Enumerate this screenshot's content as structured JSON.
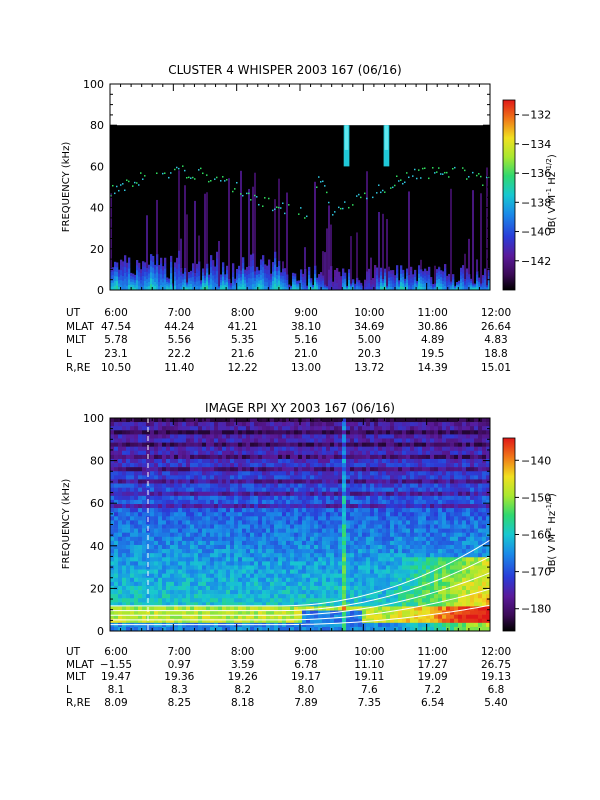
{
  "chart_data": [
    {
      "type": "heatmap",
      "title": "CLUSTER 4 WHISPER 2003 167 (06/16)",
      "xlabel": "",
      "ylabel": "FREQUENCY (kHz)",
      "colorbar_label": "dB( V M⁻¹ Hz⁻¹ᐟ²)",
      "colorbar_label_parts": {
        "pre": "dB( V M",
        "sup1": "-1",
        "mid": " Hz",
        "sup2": "-1/2",
        "post": ")"
      },
      "x_ticks": [
        "6:00",
        "7:00",
        "8:00",
        "9:00",
        "10:00",
        "11:00",
        "12:00"
      ],
      "y_ticks": [
        0,
        20,
        40,
        60,
        80,
        100
      ],
      "ylim": [
        0,
        100
      ],
      "data_ylim": [
        0,
        80
      ],
      "colorbar_ticks": [
        -132,
        -134,
        -136,
        -138,
        -140,
        -142
      ],
      "colorbar_range": [
        -144,
        -131
      ],
      "ephemeris": [
        {
          "label": "UT",
          "values": [
            "6:00",
            "7:00",
            "8:00",
            "9:00",
            "10:00",
            "11:00",
            "12:00"
          ]
        },
        {
          "label": "MLAT",
          "values": [
            "47.54",
            "44.24",
            "41.21",
            "38.10",
            "34.69",
            "30.86",
            "26.64"
          ]
        },
        {
          "label": "MLT",
          "values": [
            "5.78",
            "5.56",
            "5.35",
            "5.16",
            "5.00",
            "4.89",
            "4.83"
          ]
        },
        {
          "label": "L",
          "values": [
            "23.1",
            "22.2",
            "21.6",
            "21.0",
            "20.3",
            "19.5",
            "18.8"
          ]
        },
        {
          "label": "R,RE",
          "values": [
            "10.50",
            "11.40",
            "12.22",
            "13.00",
            "13.72",
            "14.39",
            "15.01"
          ]
        }
      ]
    },
    {
      "type": "heatmap",
      "title": "IMAGE RPI XY 2003 167 (06/16)",
      "xlabel": "",
      "ylabel": "FREQUENCY (kHz)",
      "colorbar_label": "dB( V M⁻¹ Hz⁻¹ᐟ²)",
      "colorbar_label_parts": {
        "pre": "dB( V M",
        "sup1": "-1",
        "mid": " Hz",
        "sup2": "-1/2",
        "post": ")"
      },
      "x_ticks": [
        "6:00",
        "7:00",
        "8:00",
        "9:00",
        "10:00",
        "11:00",
        "12:00"
      ],
      "y_ticks": [
        0,
        20,
        40,
        60,
        80,
        100
      ],
      "ylim": [
        0,
        100
      ],
      "colorbar_ticks": [
        -140,
        -150,
        -160,
        -170,
        -180
      ],
      "colorbar_range": [
        -186,
        -134
      ],
      "ephemeris": [
        {
          "label": "UT",
          "values": [
            "6:00",
            "7:00",
            "8:00",
            "9:00",
            "10:00",
            "11:00",
            "12:00"
          ]
        },
        {
          "label": "MLAT",
          "values": [
            "−1.55",
            "0.97",
            "3.59",
            "6.78",
            "11.10",
            "17.27",
            "26.75"
          ]
        },
        {
          "label": "MLT",
          "values": [
            "19.47",
            "19.36",
            "19.26",
            "19.17",
            "19.11",
            "19.09",
            "19.13"
          ]
        },
        {
          "label": "L",
          "values": [
            "8.1",
            "8.3",
            "8.2",
            "8.0",
            "7.6",
            "7.2",
            "6.8"
          ]
        },
        {
          "label": "R,RE",
          "values": [
            "8.09",
            "8.25",
            "8.18",
            "7.89",
            "7.35",
            "6.54",
            "5.40"
          ]
        }
      ]
    }
  ]
}
